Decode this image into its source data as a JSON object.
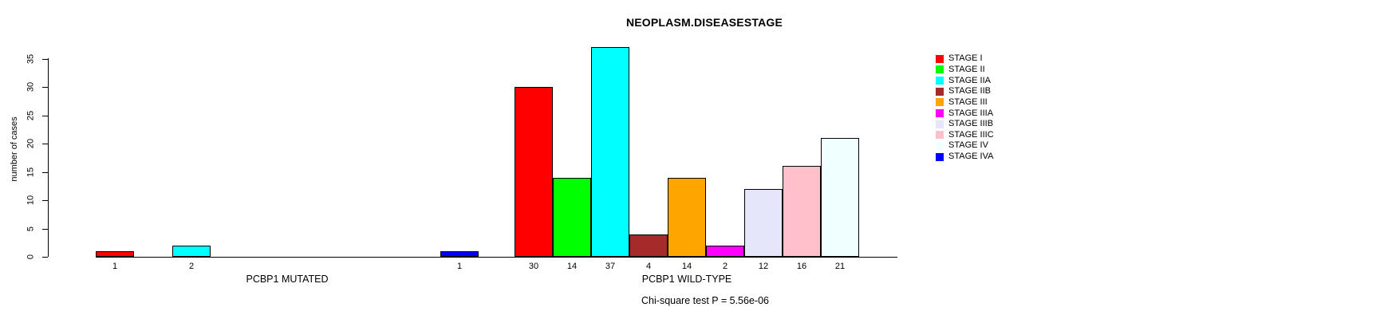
{
  "figure": {
    "title": "NEOPLASM.DISEASESTAGE",
    "y_axis_label": "number of cases",
    "footnote": "Chi-square test P = 5.56e-06"
  },
  "chart_data": {
    "type": "bar",
    "title": "NEOPLASM.DISEASESTAGE",
    "ylabel": "number of cases",
    "xlabel": "",
    "ylim": [
      0,
      37
    ],
    "yticks": [
      0,
      5,
      10,
      15,
      20,
      25,
      30,
      35
    ],
    "grid": false,
    "legend_position": "right",
    "categories": [
      "STAGE I",
      "STAGE II",
      "STAGE IIA",
      "STAGE IIB",
      "STAGE III",
      "STAGE IIIA",
      "STAGE IIIB",
      "STAGE IIIC",
      "STAGE IV",
      "STAGE IVA"
    ],
    "colors": [
      "#FF0000",
      "#00FF00",
      "#00FFFF",
      "#A52A2A",
      "#FFA500",
      "#FF00FF",
      "#E6E6FA",
      "#FFC0CB",
      "#F0FFFF",
      "#0000FF"
    ],
    "series": [
      {
        "name": "PCBP1 MUTATED",
        "values": [
          1,
          0,
          2,
          0,
          0,
          0,
          0,
          0,
          0,
          1
        ]
      },
      {
        "name": "PCBP1 WILD-TYPE",
        "values": [
          30,
          14,
          37,
          4,
          14,
          2,
          12,
          16,
          21,
          0
        ]
      }
    ],
    "bar_value_labels_visible_when": "value > 0",
    "legend": {
      "entries": [
        {
          "label": "STAGE I",
          "color": "#FF0000"
        },
        {
          "label": "STAGE II",
          "color": "#00FF00"
        },
        {
          "label": "STAGE IIA",
          "color": "#00FFFF"
        },
        {
          "label": "STAGE IIB",
          "color": "#A52A2A"
        },
        {
          "label": "STAGE III",
          "color": "#FFA500"
        },
        {
          "label": "STAGE IIIA",
          "color": "#FF00FF"
        },
        {
          "label": "STAGE IIIB",
          "color": "#E6E6FA"
        },
        {
          "label": "STAGE IIIC",
          "color": "#FFC0CB"
        },
        {
          "label": "STAGE IV",
          "color": "#F0FFFF"
        },
        {
          "label": "STAGE IVA",
          "color": "#0000FF"
        }
      ]
    },
    "footnote": "Chi-square test P = 5.56e-06"
  }
}
